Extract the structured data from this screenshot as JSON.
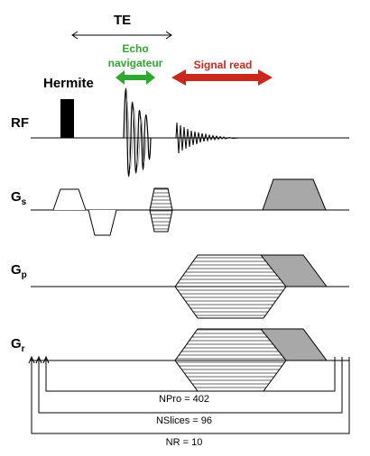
{
  "te_label": "TE",
  "hermite_label": "Hermite",
  "echo_label_line1": "Echo",
  "echo_label_line2": "navigateur",
  "signal_read_label": "Signal read",
  "axes": {
    "rf": "RF",
    "gs_main": "G",
    "gs_sub": "s",
    "gp_main": "G",
    "gp_sub": "p",
    "gr_main": "G",
    "gr_sub": "r"
  },
  "loops": {
    "npro": "NPro = 402",
    "nslices": "NSlices = 96",
    "nr": "NR = 10"
  },
  "colors": {
    "echo_green": "#2ea82e",
    "signal_red": "#c8291c",
    "trapezoid_gray": "#a8a8a8"
  }
}
